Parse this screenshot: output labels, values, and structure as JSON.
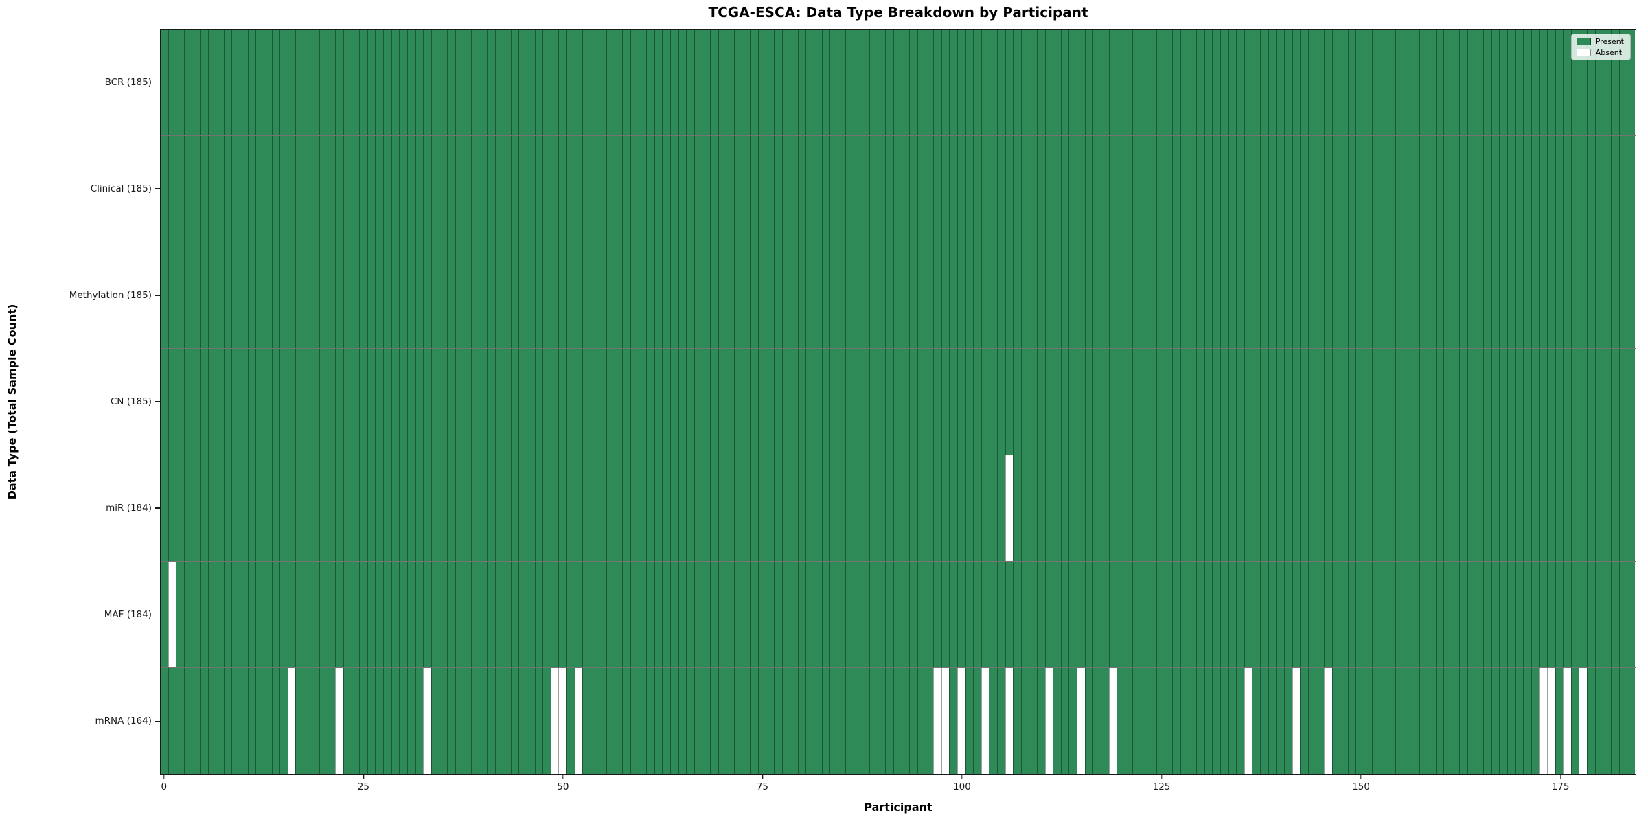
{
  "chart_data": {
    "type": "heatmap",
    "title": "TCGA-ESCA: Data Type Breakdown by Participant",
    "xlabel": "Participant",
    "ylabel": "Data Type (Total Sample Count)",
    "n_participants": 185,
    "x_ticks": [
      0,
      25,
      50,
      75,
      100,
      125,
      150,
      175
    ],
    "present_color": "#2e8b57",
    "absent_color": "#ffffff",
    "legend": [
      {
        "label": "Present",
        "color": "#2e8b57"
      },
      {
        "label": "Absent",
        "color": "#ffffff"
      }
    ],
    "rows": [
      {
        "label": "BCR (185)",
        "data_type": "BCR",
        "total": 185,
        "absent": []
      },
      {
        "label": "Clinical (185)",
        "data_type": "Clinical",
        "total": 185,
        "absent": []
      },
      {
        "label": "Methylation (185)",
        "data_type": "Methylation",
        "total": 185,
        "absent": []
      },
      {
        "label": "CN (185)",
        "data_type": "CN",
        "total": 185,
        "absent": []
      },
      {
        "label": "miR (184)",
        "data_type": "miR",
        "total": 184,
        "absent": [
          106
        ]
      },
      {
        "label": "MAF (184)",
        "data_type": "MAF",
        "total": 184,
        "absent": [
          1
        ]
      },
      {
        "label": "mRNA (164)",
        "data_type": "mRNA",
        "total": 164,
        "absent": [
          16,
          22,
          33,
          49,
          50,
          52,
          97,
          98,
          100,
          103,
          106,
          111,
          115,
          119,
          136,
          142,
          146,
          173,
          174,
          176,
          178
        ]
      }
    ]
  }
}
